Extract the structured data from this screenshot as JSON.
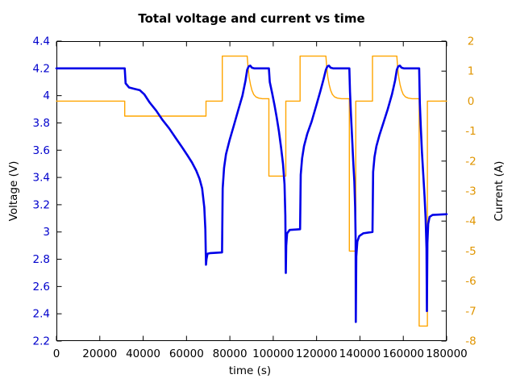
{
  "chart_data": {
    "type": "line",
    "title": "Total voltage and current vs time",
    "xlabel": "time (s)",
    "ylabel_left": "Voltage (V)",
    "ylabel_right": "Current (A)",
    "grid": false,
    "legend": "none",
    "x_range": [
      0,
      180000
    ],
    "x_ticks": [
      {
        "v": 0,
        "label": "0"
      },
      {
        "v": 20000,
        "label": "20000"
      },
      {
        "v": 40000,
        "label": "40000"
      },
      {
        "v": 60000,
        "label": "60000"
      },
      {
        "v": 80000,
        "label": "80000"
      },
      {
        "v": 100000,
        "label": "100000"
      },
      {
        "v": 120000,
        "label": "120000"
      },
      {
        "v": 140000,
        "label": "140000"
      },
      {
        "v": 160000,
        "label": "160000"
      },
      {
        "v": 180000,
        "label": "180000"
      }
    ],
    "y_left_range": [
      2.2,
      4.4
    ],
    "y_left_ticks": [
      {
        "v": 2.2,
        "label": "2.2"
      },
      {
        "v": 2.4,
        "label": "2.4"
      },
      {
        "v": 2.6,
        "label": "2.6"
      },
      {
        "v": 2.8,
        "label": "2.8"
      },
      {
        "v": 3.0,
        "label": "3"
      },
      {
        "v": 3.2,
        "label": "3.2"
      },
      {
        "v": 3.4,
        "label": "3.4"
      },
      {
        "v": 3.6,
        "label": "3.6"
      },
      {
        "v": 3.8,
        "label": "3.8"
      },
      {
        "v": 4.0,
        "label": "4"
      },
      {
        "v": 4.2,
        "label": "4.2"
      },
      {
        "v": 4.4,
        "label": "4.4"
      }
    ],
    "y_right_range": [
      -8,
      2
    ],
    "y_right_ticks": [
      {
        "v": -8,
        "label": "-8"
      },
      {
        "v": -7,
        "label": "-7"
      },
      {
        "v": -6,
        "label": "-6"
      },
      {
        "v": -5,
        "label": "-5"
      },
      {
        "v": -4,
        "label": "-4"
      },
      {
        "v": -3,
        "label": "-3"
      },
      {
        "v": -2,
        "label": "-2"
      },
      {
        "v": -1,
        "label": "-1"
      },
      {
        "v": 0,
        "label": "0"
      },
      {
        "v": 1,
        "label": "1"
      },
      {
        "v": 2,
        "label": "2"
      }
    ],
    "colors": {
      "voltage_line": "#0000e8",
      "current_line": "#ffa500",
      "voltage_tick_text": "#0000cc",
      "current_tick_text": "#e09500",
      "x_tick_text": "#000000",
      "frame": "#000000"
    },
    "series": [
      {
        "name": "voltage",
        "axis": "left",
        "unit": "V",
        "line_width": 2.6,
        "points": [
          [
            0,
            4.2
          ],
          [
            31500,
            4.2
          ],
          [
            31900,
            4.09
          ],
          [
            33500,
            4.06
          ],
          [
            36000,
            4.05
          ],
          [
            38500,
            4.04
          ],
          [
            40500,
            4.01
          ],
          [
            43000,
            3.95
          ],
          [
            46000,
            3.89
          ],
          [
            49000,
            3.82
          ],
          [
            52000,
            3.76
          ],
          [
            55000,
            3.69
          ],
          [
            58000,
            3.62
          ],
          [
            60500,
            3.56
          ],
          [
            62500,
            3.51
          ],
          [
            64500,
            3.45
          ],
          [
            66000,
            3.39
          ],
          [
            67200,
            3.32
          ],
          [
            68200,
            3.18
          ],
          [
            68700,
            3.02
          ],
          [
            69000,
            2.76
          ],
          [
            69200,
            2.8
          ],
          [
            69700,
            2.84
          ],
          [
            71000,
            2.845
          ],
          [
            76400,
            2.85
          ],
          [
            76700,
            3.32
          ],
          [
            77300,
            3.47
          ],
          [
            78200,
            3.57
          ],
          [
            79800,
            3.67
          ],
          [
            81800,
            3.78
          ],
          [
            83800,
            3.89
          ],
          [
            85800,
            4.0
          ],
          [
            87200,
            4.11
          ],
          [
            88000,
            4.19
          ],
          [
            88700,
            4.215
          ],
          [
            89400,
            4.22
          ],
          [
            90200,
            4.205
          ],
          [
            91200,
            4.2
          ],
          [
            98000,
            4.2
          ],
          [
            98400,
            4.1
          ],
          [
            99500,
            4.02
          ],
          [
            100600,
            3.93
          ],
          [
            101600,
            3.84
          ],
          [
            102600,
            3.74
          ],
          [
            103600,
            3.62
          ],
          [
            104500,
            3.5
          ],
          [
            105200,
            3.35
          ],
          [
            105600,
            3.12
          ],
          [
            105800,
            2.7
          ],
          [
            106000,
            2.9
          ],
          [
            106400,
            2.99
          ],
          [
            107600,
            3.015
          ],
          [
            112400,
            3.02
          ],
          [
            112700,
            3.42
          ],
          [
            113300,
            3.54
          ],
          [
            114200,
            3.63
          ],
          [
            115700,
            3.72
          ],
          [
            117700,
            3.81
          ],
          [
            119700,
            3.92
          ],
          [
            121700,
            4.03
          ],
          [
            123200,
            4.12
          ],
          [
            124300,
            4.19
          ],
          [
            125000,
            4.215
          ],
          [
            125700,
            4.22
          ],
          [
            126500,
            4.205
          ],
          [
            127600,
            4.2
          ],
          [
            135100,
            4.2
          ],
          [
            135400,
            4.03
          ],
          [
            135900,
            3.85
          ],
          [
            136400,
            3.68
          ],
          [
            136900,
            3.52
          ],
          [
            137400,
            3.37
          ],
          [
            137800,
            3.18
          ],
          [
            138000,
            2.95
          ],
          [
            138100,
            2.34
          ],
          [
            138300,
            2.82
          ],
          [
            138800,
            2.93
          ],
          [
            139700,
            2.97
          ],
          [
            141500,
            2.99
          ],
          [
            145800,
            3.0
          ],
          [
            146100,
            3.44
          ],
          [
            146700,
            3.55
          ],
          [
            147600,
            3.63
          ],
          [
            149000,
            3.71
          ],
          [
            150800,
            3.8
          ],
          [
            152800,
            3.9
          ],
          [
            154800,
            4.01
          ],
          [
            156200,
            4.11
          ],
          [
            157000,
            4.19
          ],
          [
            157700,
            4.215
          ],
          [
            158400,
            4.22
          ],
          [
            159200,
            4.205
          ],
          [
            160200,
            4.2
          ],
          [
            167300,
            4.2
          ],
          [
            167600,
            3.95
          ],
          [
            168100,
            3.76
          ],
          [
            168600,
            3.59
          ],
          [
            169200,
            3.42
          ],
          [
            169800,
            3.26
          ],
          [
            170300,
            3.1
          ],
          [
            170700,
            2.88
          ],
          [
            170900,
            2.42
          ],
          [
            171100,
            2.92
          ],
          [
            171500,
            3.06
          ],
          [
            172100,
            3.11
          ],
          [
            173500,
            3.125
          ],
          [
            180000,
            3.13
          ]
        ]
      },
      {
        "name": "current",
        "axis": "right",
        "unit": "A",
        "line_width": 1.4,
        "points": [
          [
            0,
            0
          ],
          [
            31500,
            0
          ],
          [
            31500,
            -0.5
          ],
          [
            69000,
            -0.5
          ],
          [
            69000,
            0
          ],
          [
            76500,
            0
          ],
          [
            76500,
            1.5
          ],
          [
            88000,
            1.5
          ],
          [
            88400,
            1.12
          ],
          [
            88900,
            0.8
          ],
          [
            89500,
            0.55
          ],
          [
            90200,
            0.36
          ],
          [
            91000,
            0.22
          ],
          [
            92000,
            0.14
          ],
          [
            93300,
            0.1
          ],
          [
            95000,
            0.08
          ],
          [
            98000,
            0.08
          ],
          [
            98000,
            -2.5
          ],
          [
            105800,
            -2.5
          ],
          [
            105800,
            0
          ],
          [
            112400,
            0
          ],
          [
            112400,
            1.5
          ],
          [
            124300,
            1.5
          ],
          [
            124700,
            1.12
          ],
          [
            125200,
            0.8
          ],
          [
            125800,
            0.55
          ],
          [
            126500,
            0.36
          ],
          [
            127300,
            0.22
          ],
          [
            128300,
            0.14
          ],
          [
            129600,
            0.1
          ],
          [
            131500,
            0.08
          ],
          [
            135100,
            0.08
          ],
          [
            135100,
            -5
          ],
          [
            138100,
            -5
          ],
          [
            138100,
            0
          ],
          [
            145800,
            0
          ],
          [
            145800,
            1.5
          ],
          [
            157000,
            1.5
          ],
          [
            157400,
            1.12
          ],
          [
            157900,
            0.8
          ],
          [
            158500,
            0.55
          ],
          [
            159200,
            0.36
          ],
          [
            160000,
            0.22
          ],
          [
            161000,
            0.14
          ],
          [
            162300,
            0.1
          ],
          [
            164000,
            0.08
          ],
          [
            167300,
            0.08
          ],
          [
            167300,
            -7.5
          ],
          [
            171100,
            -7.5
          ],
          [
            171100,
            0
          ],
          [
            180000,
            0
          ]
        ]
      }
    ]
  }
}
